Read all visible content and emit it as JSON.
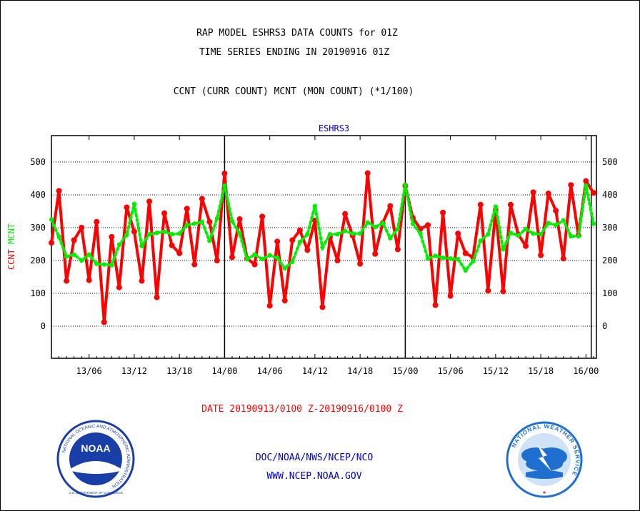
{
  "header": {
    "title_line1": "RAP MODEL ESHRS3 DATA COUNTS for 01Z",
    "title_line2": "TIME SERIES ENDING IN 20190916 01Z",
    "subtitle": "CCNT (CURR COUNT) MCNT (MON COUNT) (*1/100)"
  },
  "footer": {
    "date_range": "DATE 20190913/0100 Z-20190916/0100 Z",
    "org_line": "DOC/NOAA/NWS/NCEP/NCO",
    "url": "WWW.NCEP.NOAA.GOV"
  },
  "logos": {
    "noaa_label": "NOAA",
    "noaa_ring": "NATIONAL OCEANIC AND ATMOSPHERIC ADMINISTRATION",
    "noaa_bottom": "U.S. DEPARTMENT OF COMMERCE",
    "nws_ring": "NATIONAL WEATHER SERVICE"
  },
  "colors": {
    "ccnt": "#ff0000",
    "mcnt": "#00ee00",
    "axis_title": "#0000cc",
    "noaa_blue": "#1a3ea8",
    "nws_blue": "#1f6fd0"
  },
  "chart_data": {
    "type": "line",
    "title": "ESHRS3",
    "ylabel_left": [
      "CCNT",
      "MCNT"
    ],
    "ylim": [
      -100,
      580
    ],
    "yticks": [
      0,
      100,
      200,
      300,
      400,
      500
    ],
    "xlim_hours": [
      0,
      73.5
    ],
    "x_unit": "hours from 20190913/0100 Z",
    "xtick_labels": [
      "13/06",
      "13/12",
      "13/18",
      "14/00",
      "14/06",
      "14/12",
      "14/18",
      "15/00",
      "15/06",
      "15/12",
      "15/18",
      "16/00"
    ],
    "xtick_hours": [
      5,
      11,
      17,
      23,
      29,
      35,
      41,
      47,
      53,
      59,
      65,
      71
    ],
    "day_boundaries_hours": [
      23,
      47,
      71.7
    ],
    "grid": true,
    "series": [
      {
        "name": "CCNT",
        "color": "#ff0000",
        "style": "solid",
        "values": [
          254,
          412,
          138,
          262,
          300,
          140,
          318,
          12,
          272,
          118,
          362,
          288,
          138,
          380,
          88,
          344,
          246,
          222,
          358,
          188,
          388,
          318,
          200,
          465,
          210,
          326,
          206,
          188,
          334,
          62,
          258,
          78,
          262,
          292,
          232,
          322,
          58,
          272,
          200,
          342,
          276,
          190,
          466,
          220,
          314,
          366,
          234,
          428,
          330,
          296,
          308,
          64,
          346,
          92,
          282,
          222,
          210,
          370,
          108,
          354,
          106,
          370,
          280,
          244,
          408,
          216,
          404,
          352,
          206,
          430,
          276,
          442,
          406
        ]
      },
      {
        "name": "MCNT",
        "color": "#00ee00",
        "style": "dotted",
        "values": [
          325,
          272,
          212,
          218,
          200,
          218,
          190,
          188,
          186,
          248,
          278,
          372,
          244,
          280,
          284,
          288,
          280,
          282,
          308,
          312,
          318,
          260,
          328,
          428,
          320,
          282,
          204,
          218,
          204,
          216,
          208,
          176,
          196,
          256,
          280,
          366,
          240,
          280,
          280,
          290,
          282,
          282,
          316,
          302,
          314,
          268,
          296,
          430,
          312,
          282,
          206,
          214,
          208,
          206,
          204,
          170,
          198,
          260,
          280,
          364,
          234,
          284,
          276,
          296,
          282,
          280,
          314,
          308,
          322,
          274,
          274,
          428,
          312
        ]
      }
    ]
  }
}
